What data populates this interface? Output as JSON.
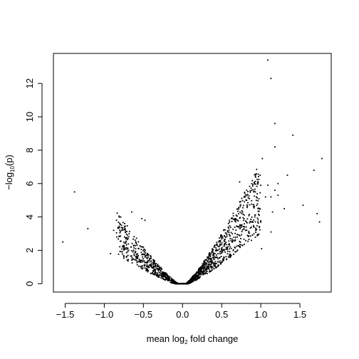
{
  "chart_data": {
    "type": "scatter",
    "title": "",
    "xlabel": {
      "prefix": "mean log",
      "sub": "2",
      "suffix": " fold change"
    },
    "ylabel": {
      "prefix": "−log",
      "sub": "10",
      "suffix": "(p)"
    },
    "xlim": [
      -1.65,
      1.9
    ],
    "ylim": [
      -0.5,
      13.8
    ],
    "xticks": [
      -1.5,
      -1.0,
      -0.5,
      0.0,
      0.5,
      1.0,
      1.5
    ],
    "xtick_labels": [
      "−1.5",
      "−1.0",
      "−0.5",
      "0.0",
      "0.5",
      "1.0",
      "1.5"
    ],
    "yticks": [
      0,
      2,
      4,
      6,
      8,
      10,
      12
    ],
    "ytick_labels": [
      "0",
      "2",
      "4",
      "6",
      "8",
      "10",
      "12"
    ],
    "grid": false,
    "legend": "none",
    "marker_color": "#000000",
    "points": [
      [
        1.09,
        13.4
      ],
      [
        1.13,
        12.3
      ],
      [
        1.18,
        9.6
      ],
      [
        1.41,
        8.9
      ],
      [
        1.18,
        8.2
      ],
      [
        1.78,
        7.5
      ],
      [
        1.02,
        7.5
      ],
      [
        1.68,
        6.8
      ],
      [
        1.34,
        6.5
      ],
      [
        0.73,
        6.1
      ],
      [
        1.22,
        6.0
      ],
      [
        1.09,
        5.9
      ],
      [
        1.0,
        5.9
      ],
      [
        0.93,
        5.5
      ],
      [
        1.18,
        5.6
      ],
      [
        1.06,
        5.2
      ],
      [
        1.13,
        5.2
      ],
      [
        1.22,
        5.3
      ],
      [
        0.82,
        5.0
      ],
      [
        1.54,
        4.7
      ],
      [
        1.3,
        4.5
      ],
      [
        1.72,
        4.2
      ],
      [
        1.15,
        4.3
      ],
      [
        1.75,
        3.7
      ],
      [
        1.13,
        3.1
      ],
      [
        1.01,
        2.1
      ],
      [
        -1.38,
        5.5
      ],
      [
        -1.21,
        3.3
      ],
      [
        -1.53,
        2.5
      ],
      [
        -0.88,
        3.2
      ],
      [
        -0.92,
        1.8
      ],
      [
        -0.65,
        4.3
      ],
      [
        -0.79,
        4.0
      ],
      [
        -0.78,
        3.5
      ],
      [
        -0.52,
        3.9
      ],
      [
        -0.48,
        3.8
      ],
      [
        -0.74,
        2.8
      ],
      [
        -0.69,
        2.0
      ],
      [
        -0.58,
        1.5
      ]
    ],
    "cloud": {
      "left": {
        "x_min": -0.85,
        "x_max": 0.0,
        "count": 620,
        "scale": 4.3
      },
      "right": {
        "x_min": 0.0,
        "x_max": 1.0,
        "count": 940,
        "scale": 5.8
      }
    }
  }
}
